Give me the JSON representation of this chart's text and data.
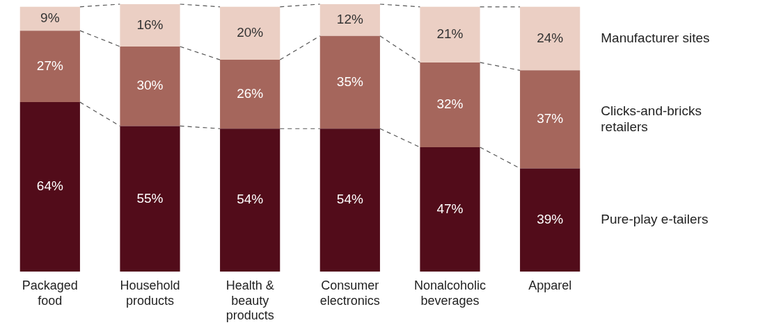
{
  "chart_data": {
    "type": "bar",
    "stacked": true,
    "categories": [
      "Packaged food",
      "Household products",
      "Health & beauty products",
      "Consumer electronics",
      "Nonalcoholic beverages",
      "Apparel"
    ],
    "series": [
      {
        "name": "Pure-play e-tailers",
        "color": "#520c1a",
        "values": [
          64,
          55,
          54,
          54,
          47,
          39
        ],
        "value_labels": [
          "64%",
          "55%",
          "54%",
          "54%",
          "47%",
          "39%"
        ]
      },
      {
        "name": "Clicks-and-bricks retailers",
        "color": "#a5665c",
        "values": [
          27,
          30,
          26,
          35,
          32,
          37
        ],
        "value_labels": [
          "27%",
          "30%",
          "26%",
          "35%",
          "32%",
          "37%"
        ]
      },
      {
        "name": "Manufacturer sites",
        "color": "#ebcfc4",
        "values": [
          9,
          16,
          20,
          12,
          21,
          24
        ],
        "value_labels": [
          "9%",
          "16%",
          "20%",
          "12%",
          "21%",
          "24%"
        ]
      }
    ]
  }
}
